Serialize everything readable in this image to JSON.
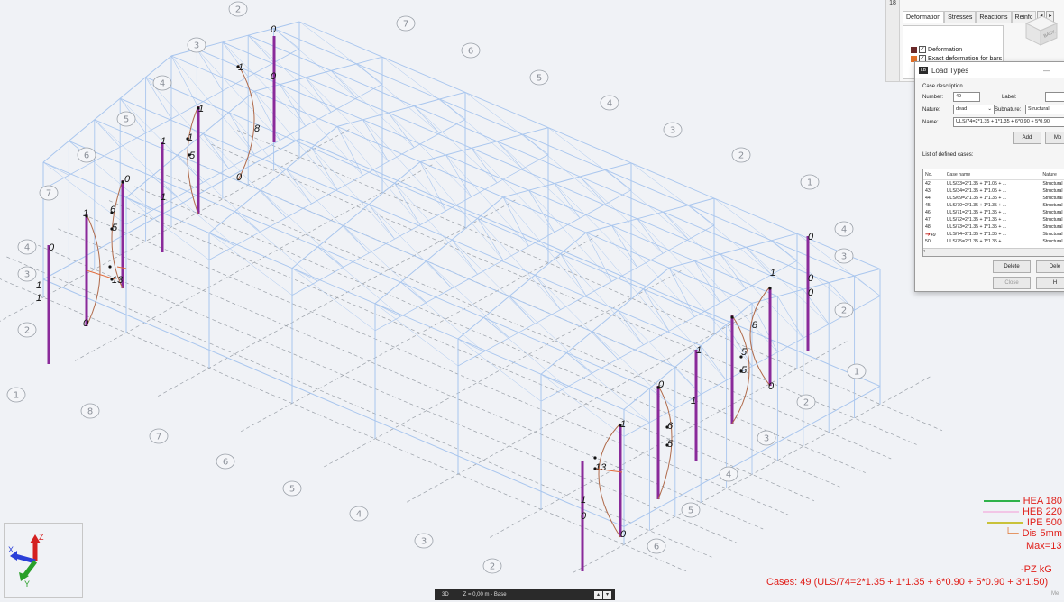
{
  "grid_labels": {
    "left_numbers": [
      "2",
      "3",
      "4",
      "5",
      "6",
      "7",
      "4",
      "3",
      "2",
      "1",
      "8",
      "7",
      "6",
      "5",
      "4",
      "3",
      "2"
    ],
    "top_numbers": [
      "7",
      "6",
      "5",
      "4",
      "3",
      "2",
      "1"
    ],
    "right_numbers": [
      "4",
      "3",
      "2",
      "1",
      "2",
      "3",
      "4",
      "5",
      "6"
    ]
  },
  "value_labels": {
    "zero": "0",
    "one": "1",
    "five": "5",
    "six": "6",
    "eight": "8",
    "thirteen": "13"
  },
  "tabs_panel": {
    "gutter": "18",
    "tabs": [
      "Deformation",
      "Stresses",
      "Reactions",
      "Reinfc"
    ],
    "deformation_label": "Deformation",
    "exact_label": "Exact deformation for bars"
  },
  "view_cube": {
    "label": "BACK"
  },
  "dialog": {
    "title": "Load Types",
    "minimize": "—",
    "case_description": "Case description",
    "number_label": "Number:",
    "number_value": "49",
    "label_label": "Label:",
    "nature_label": "Nature:",
    "nature_value": "dead",
    "subnature_label": "Subnature:",
    "subnature_value": "Structural",
    "name_label": "Name:",
    "name_value": "ULS/74=2*1.35 + 1*1.35 + 6*0.90 + 5*0.90",
    "add_label": "Add",
    "modify_label": "Mo",
    "list_title": "List of defined cases:",
    "columns": [
      "No.",
      "Case name",
      "Nature"
    ],
    "rows": [
      {
        "no": "42",
        "name": "ULS/33=2*1.35 + 1*1.05 + ...",
        "nature": "Structural"
      },
      {
        "no": "43",
        "name": "ULS/34=2*1.35 + 1*1.05 + ...",
        "nature": "Structural"
      },
      {
        "no": "44",
        "name": "ULS/69=2*1.35 + 1*1.35 + ...",
        "nature": "Structural"
      },
      {
        "no": "45",
        "name": "ULS/70=2*1.35 + 1*1.35 + ...",
        "nature": "Structural"
      },
      {
        "no": "46",
        "name": "ULS/71=2*1.35 + 1*1.35 + ...",
        "nature": "Structural"
      },
      {
        "no": "47",
        "name": "ULS/72=2*1.35 + 1*1.35 + ...",
        "nature": "Structural"
      },
      {
        "no": "48",
        "name": "ULS/73=2*1.35 + 1*1.35 + ...",
        "nature": "Structural"
      },
      {
        "no": "49",
        "name": "ULS/74=2*1.35 + 1*1.35 + ...",
        "nature": "Structural"
      },
      {
        "no": "50",
        "name": "ULS/75=2*1.35 + 1*1.35 + ...",
        "nature": "Structural"
      }
    ],
    "delete_label": "Delete",
    "delete_all_label": "Dele",
    "close_label": "Close",
    "help_label": "H"
  },
  "legend": {
    "items": [
      {
        "label": "HEA 180",
        "color": "#2fb24a"
      },
      {
        "label": "HEB 220",
        "color": "#f2c6e6"
      },
      {
        "label": "IPE 500",
        "color": "#c9c23a"
      }
    ],
    "dis_label": "Dis",
    "dis_value": "5mm",
    "max_value": "Max=13",
    "unit": "-PZ  kG",
    "cases": "Cases: 49 (ULS/74=2*1.35 + 1*1.35 + 6*0.90 + 5*0.90 + 3*1.50)"
  },
  "bottom_bar": {
    "view": "3D",
    "level": "Z = 0,00 m - Base"
  },
  "corner_text": "Me",
  "colors": {
    "frame": "#a9c6ee",
    "column": "#8a2a9a",
    "diagram": "#b06a4a",
    "accent": "#e0201b"
  }
}
